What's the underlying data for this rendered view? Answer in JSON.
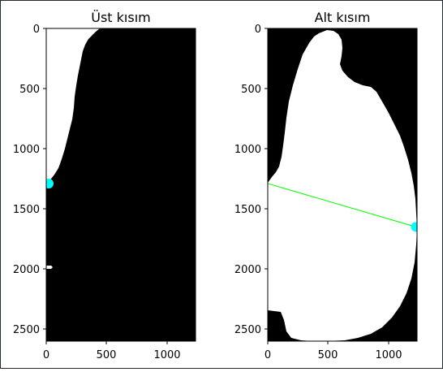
{
  "chart_data": [
    {
      "type": "image",
      "title": "Üst kısım",
      "xlabel": "",
      "ylabel": "",
      "xlim": [
        0,
        1240
      ],
      "ylim": [
        2600,
        0
      ],
      "x_ticks": [
        "0",
        "500",
        "1000"
      ],
      "y_ticks": [
        "0",
        "500",
        "1000",
        "1500",
        "2000",
        "2500"
      ],
      "background_color": "#000000",
      "foreground_color": "#ffffff",
      "markers": [
        {
          "name": "",
          "x": 20,
          "y": 1290,
          "color": "#00ffff"
        }
      ]
    },
    {
      "type": "image",
      "title": "Alt kısım",
      "xlabel": "",
      "ylabel": "",
      "xlim": [
        0,
        1240
      ],
      "ylim": [
        2600,
        0
      ],
      "x_ticks": [
        "0",
        "500",
        "1000"
      ],
      "y_ticks": [
        "0",
        "500",
        "1000",
        "1500",
        "2000",
        "2500"
      ],
      "background_color": "#000000",
      "foreground_color": "#ffffff",
      "markers": [
        {
          "name": "",
          "x": 1230,
          "y": 1650,
          "color": "#00ffff"
        }
      ],
      "lines": [
        {
          "x": [
            0,
            1230
          ],
          "y": [
            1290,
            1650
          ],
          "color": "#00ff00"
        }
      ]
    }
  ]
}
